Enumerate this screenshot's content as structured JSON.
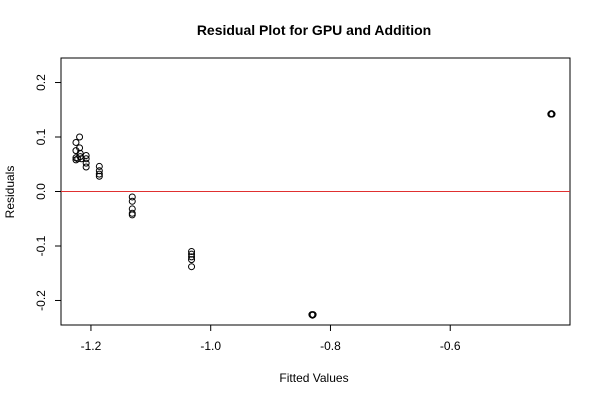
{
  "chart_data": {
    "type": "scatter",
    "title": "Residual Plot for GPU and Addition",
    "xlabel": "Fitted Values",
    "ylabel": "Residuals",
    "xlim": [
      -1.25,
      -0.4
    ],
    "ylim": [
      -0.245,
      0.245
    ],
    "x_ticks": [
      -1.2,
      -1.0,
      -0.8,
      -0.6
    ],
    "x_tick_labels": [
      "-1.2",
      "-1.0",
      "-0.8",
      "-0.6"
    ],
    "y_ticks": [
      -0.2,
      -0.1,
      0.0,
      0.1,
      0.2
    ],
    "y_tick_labels": [
      "-0.2",
      "-0.1",
      "0.0",
      "0.1",
      "0.2"
    ],
    "reference_line": {
      "y": 0.0,
      "color": "#e03030"
    },
    "grid": false,
    "legend": "none",
    "points": [
      {
        "x": -1.225,
        "y": 0.09
      },
      {
        "x": -1.225,
        "y": 0.075
      },
      {
        "x": -1.225,
        "y": 0.062
      },
      {
        "x": -1.225,
        "y": 0.058
      },
      {
        "x": -1.222,
        "y": 0.06
      },
      {
        "x": -1.219,
        "y": 0.1
      },
      {
        "x": -1.219,
        "y": 0.08
      },
      {
        "x": -1.218,
        "y": 0.07
      },
      {
        "x": -1.218,
        "y": 0.064
      },
      {
        "x": -1.216,
        "y": 0.06
      },
      {
        "x": -1.208,
        "y": 0.066
      },
      {
        "x": -1.208,
        "y": 0.06
      },
      {
        "x": -1.208,
        "y": 0.052
      },
      {
        "x": -1.208,
        "y": 0.045
      },
      {
        "x": -1.186,
        "y": 0.046
      },
      {
        "x": -1.186,
        "y": 0.038
      },
      {
        "x": -1.186,
        "y": 0.032
      },
      {
        "x": -1.186,
        "y": 0.028
      },
      {
        "x": -1.131,
        "y": -0.01
      },
      {
        "x": -1.131,
        "y": -0.018
      },
      {
        "x": -1.131,
        "y": -0.032
      },
      {
        "x": -1.131,
        "y": -0.04
      },
      {
        "x": -1.131,
        "y": -0.043
      },
      {
        "x": -1.032,
        "y": -0.11
      },
      {
        "x": -1.032,
        "y": -0.115
      },
      {
        "x": -1.032,
        "y": -0.12
      },
      {
        "x": -1.032,
        "y": -0.125
      },
      {
        "x": -1.032,
        "y": -0.138
      },
      {
        "x": -0.831,
        "y": -0.226
      },
      {
        "x": -0.83,
        "y": -0.227
      },
      {
        "x": -0.829,
        "y": -0.226
      },
      {
        "x": -0.432,
        "y": 0.142
      },
      {
        "x": -0.431,
        "y": 0.143
      },
      {
        "x": -0.43,
        "y": 0.142
      }
    ]
  }
}
